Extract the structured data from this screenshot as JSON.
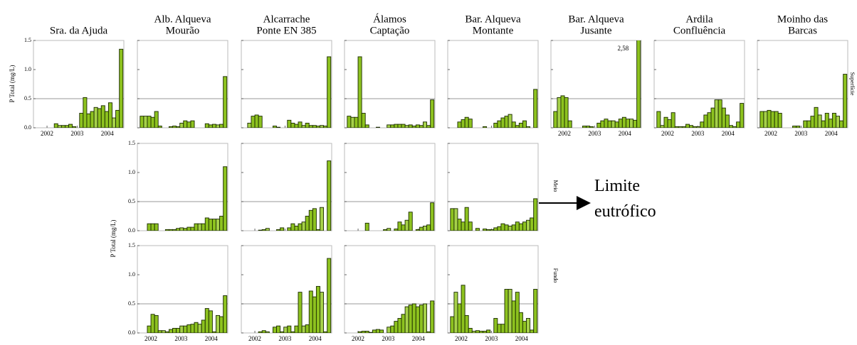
{
  "chart_data": {
    "type": "bar",
    "ylabel": "P Total (mg/L)",
    "x": [
      2001.7,
      2001.82,
      2001.94,
      2002.06,
      2002.18,
      2002.3,
      2002.42,
      2002.54,
      2002.66,
      2002.78,
      2002.9,
      2003.02,
      2003.14,
      2003.26,
      2003.38,
      2003.5,
      2003.62,
      2003.74,
      2003.86,
      2003.98,
      2004.1,
      2004.22,
      2004.34,
      2004.46
    ],
    "xlim": [
      2001.55,
      2004.55
    ],
    "xticks": [
      2002,
      2003,
      2004
    ],
    "ylim": [
      0,
      1.5
    ],
    "yticks": [
      {
        "value": 0,
        "label": "0.0"
      },
      {
        "value": 0.5,
        "label": "0.5"
      },
      {
        "value": 1,
        "label": "1.0"
      },
      {
        "value": 1.5,
        "label": "1.5"
      }
    ],
    "color": "#8dc21f",
    "threshold": 0.5,
    "threshold_label": "Limite eutrófico",
    "columns": [
      [
        "Sra. da Ajuda"
      ],
      [
        "Alb. Alqueva",
        "Mourão"
      ],
      [
        "Alcarrache",
        "Ponte EN 385"
      ],
      [
        "Álamos",
        "Captação"
      ],
      [
        "Bar. Alqueva",
        "Montante"
      ],
      [
        "Bar. Alqueva",
        "Jusante"
      ],
      [
        "Ardila",
        "Confluência"
      ],
      [
        "Moinho das",
        "Barcas"
      ]
    ],
    "rows": [
      {
        "label": "Superfície",
        "panels": [
          {
            "values": [
              null,
              null,
              null,
              null,
              null,
              0.07,
              0.04,
              0.04,
              0.04,
              0.06,
              0.02,
              null,
              0.25,
              0.52,
              0.24,
              0.28,
              0.35,
              0.33,
              0.38,
              0.28,
              0.43,
              0.17,
              0.3,
              1.35
            ]
          },
          {
            "values": [
              0.2,
              0.2,
              0.2,
              0.18,
              0.28,
              0.03,
              null,
              null,
              0.02,
              0.03,
              0.02,
              0.08,
              0.12,
              0.1,
              0.12,
              null,
              null,
              null,
              0.07,
              0.05,
              0.06,
              0.05,
              0.06,
              0.88
            ]
          },
          {
            "values": [
              null,
              0.08,
              0.2,
              0.22,
              0.2,
              null,
              null,
              null,
              0.03,
              0.01,
              null,
              null,
              0.13,
              0.08,
              0.06,
              0.1,
              0.04,
              0.08,
              0.04,
              0.04,
              0.03,
              0.04,
              0.03,
              1.22
            ]
          },
          {
            "values": [
              0.2,
              0.18,
              0.18,
              1.22,
              0.25,
              0.05,
              null,
              null,
              0.01,
              null,
              null,
              0.05,
              0.05,
              0.06,
              0.06,
              0.06,
              0.04,
              0.05,
              0.03,
              0.05,
              0.04,
              0.1,
              0.04,
              0.48
            ]
          },
          {
            "values": [
              null,
              null,
              0.1,
              0.14,
              0.18,
              0.15,
              null,
              null,
              null,
              0.02,
              null,
              null,
              0.08,
              0.12,
              0.17,
              0.2,
              0.23,
              0.1,
              0.04,
              0.08,
              0.12,
              0.02,
              null,
              0.66
            ]
          },
          {
            "values": [
              0.28,
              0.52,
              0.55,
              0.52,
              0.12,
              null,
              null,
              null,
              0.03,
              0.03,
              0.02,
              null,
              0.08,
              0.12,
              0.15,
              0.12,
              0.12,
              0.1,
              0.15,
              0.18,
              0.15,
              0.15,
              0.13,
              2.58
            ],
            "value_labels": [
              null,
              null,
              null,
              null,
              null,
              null,
              null,
              null,
              null,
              null,
              null,
              null,
              null,
              null,
              null,
              null,
              null,
              null,
              null,
              null,
              null,
              null,
              null,
              "2,58"
            ]
          },
          {
            "values": [
              0.28,
              0.04,
              0.18,
              0.14,
              0.26,
              0.02,
              0.02,
              0.02,
              0.06,
              0.04,
              0.02,
              0.02,
              0.1,
              0.22,
              0.26,
              0.34,
              0.48,
              0.48,
              0.34,
              0.22,
              0.04,
              0.02,
              0.1,
              0.42
            ]
          },
          {
            "values": [
              0.28,
              0.28,
              0.3,
              0.28,
              0.28,
              0.25,
              null,
              null,
              null,
              0.03,
              0.03,
              null,
              0.12,
              0.12,
              0.2,
              0.35,
              0.22,
              0.12,
              0.25,
              0.15,
              0.25,
              0.2,
              0.12,
              0.92
            ]
          }
        ]
      },
      {
        "label": "Meio",
        "panels": [
          null,
          {
            "values": [
              null,
              null,
              0.12,
              0.12,
              0.12,
              null,
              null,
              0.02,
              0.02,
              0.02,
              0.04,
              0.05,
              0.04,
              0.06,
              0.06,
              0.12,
              0.12,
              0.12,
              0.22,
              0.2,
              0.2,
              0.2,
              0.25,
              1.1
            ]
          },
          {
            "values": [
              null,
              null,
              null,
              null,
              0.01,
              0.02,
              0.04,
              null,
              null,
              0.02,
              0.05,
              null,
              0.05,
              0.12,
              0.08,
              0.12,
              0.15,
              0.25,
              0.35,
              0.38,
              0.02,
              0.4,
              null,
              1.2
            ]
          },
          {
            "values": [
              null,
              null,
              null,
              null,
              null,
              0.13,
              null,
              null,
              null,
              null,
              0.02,
              0.04,
              null,
              0.03,
              0.15,
              0.1,
              0.18,
              0.32,
              null,
              0.02,
              0.06,
              0.08,
              0.1,
              0.48
            ]
          },
          {
            "values": [
              0.38,
              0.38,
              0.2,
              0.15,
              0.4,
              0.15,
              null,
              0.04,
              null,
              0.03,
              0.02,
              0.02,
              0.05,
              0.07,
              0.12,
              0.1,
              0.08,
              0.1,
              0.15,
              0.12,
              0.15,
              0.18,
              0.22,
              0.55
            ]
          },
          null,
          null,
          null
        ]
      },
      {
        "label": "Fundo",
        "panels": [
          null,
          {
            "values": [
              null,
              null,
              0.12,
              0.32,
              0.3,
              0.04,
              0.04,
              0.02,
              0.06,
              0.08,
              0.08,
              0.12,
              0.12,
              0.14,
              0.15,
              0.18,
              0.15,
              0.22,
              0.42,
              0.38,
              0.02,
              0.3,
              0.28,
              0.64
            ]
          },
          {
            "values": [
              null,
              null,
              null,
              null,
              0.02,
              0.04,
              0.02,
              null,
              0.1,
              0.12,
              0.02,
              0.1,
              0.12,
              0.02,
              0.12,
              0.7,
              0.12,
              0.14,
              0.72,
              0.62,
              0.8,
              0.7,
              0.02,
              1.28
            ]
          },
          {
            "values": [
              null,
              null,
              null,
              0.02,
              0.03,
              0.03,
              0.01,
              0.05,
              0.06,
              0.05,
              null,
              0.1,
              0.12,
              0.2,
              0.25,
              0.32,
              0.45,
              0.48,
              0.5,
              0.45,
              0.48,
              0.5,
              0.02,
              0.55
            ]
          },
          {
            "values": [
              0.28,
              0.7,
              0.5,
              0.82,
              0.3,
              0.08,
              0.03,
              0.04,
              0.03,
              0.03,
              0.05,
              null,
              0.25,
              0.15,
              0.15,
              0.75,
              0.75,
              0.55,
              0.7,
              0.35,
              0.2,
              0.25,
              0.05,
              0.75
            ]
          },
          null,
          null,
          null
        ]
      }
    ]
  }
}
